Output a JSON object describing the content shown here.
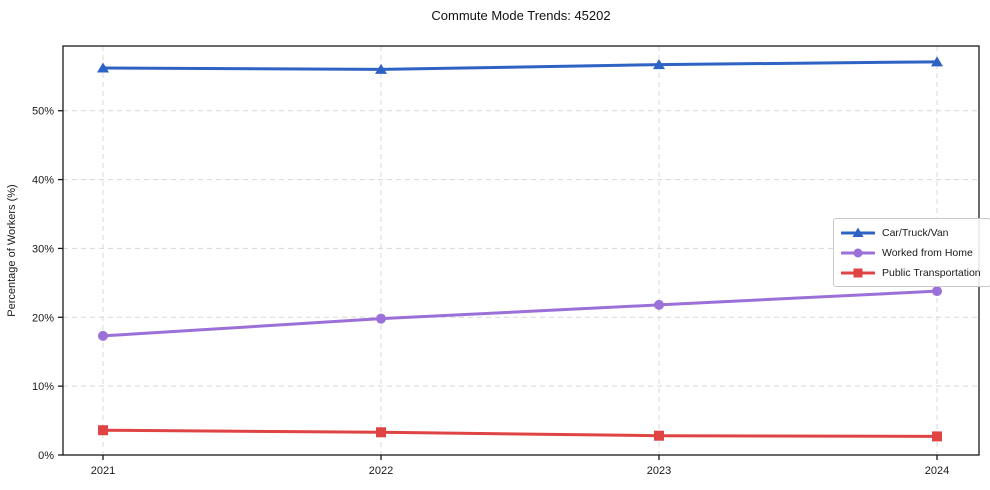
{
  "chart_data": {
    "type": "line",
    "title": "Commute Mode Trends: 45202",
    "xlabel": "",
    "ylabel": "Percentage of Workers (%)",
    "categories": [
      "2021",
      "2022",
      "2023",
      "2024"
    ],
    "series": [
      {
        "name": "Car/Truck/Van",
        "color": "#2e63c5",
        "marker": "triangle",
        "values": [
          56.2,
          56.0,
          56.7,
          57.1
        ]
      },
      {
        "name": "Worked from Home",
        "color": "#9b70d8",
        "marker": "circle",
        "values": [
          17.3,
          19.8,
          21.8,
          23.8
        ]
      },
      {
        "name": "Public Transportation",
        "color": "#e04343",
        "marker": "square",
        "values": [
          3.6,
          3.3,
          2.8,
          2.7
        ]
      }
    ],
    "y_ticks": [
      0,
      10,
      20,
      30,
      40,
      50
    ],
    "y_tick_labels": [
      "0%",
      "10%",
      "20%",
      "30%",
      "40%",
      "50%"
    ],
    "ylim": [
      0,
      59.4
    ],
    "grid": true,
    "grid_style": "dashed",
    "legend_position": "center-right"
  },
  "colors": {
    "grid": "#d8d8d8",
    "spine": "#1a1a1a",
    "tick_text": "#1a1a1a",
    "background": "#ffffff"
  }
}
